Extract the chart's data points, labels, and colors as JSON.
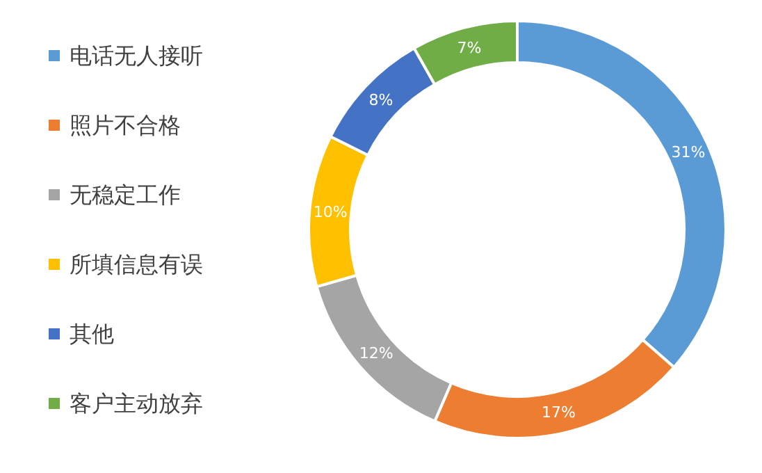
{
  "chart_data": {
    "type": "donut",
    "categories": [
      "电话无人接听",
      "照片不合格",
      "无稳定工作",
      "所填信息有误",
      "其他",
      "客户主动放弃"
    ],
    "values": [
      31,
      17,
      12,
      10,
      8,
      7
    ],
    "colors": [
      "#5b9bd5",
      "#ed7d31",
      "#a5a5a5",
      "#ffc000",
      "#4472c4",
      "#70ad47"
    ],
    "value_labels": [
      "31%",
      "17%",
      "12%",
      "10%",
      "8%",
      "7%"
    ],
    "legend": "left"
  }
}
